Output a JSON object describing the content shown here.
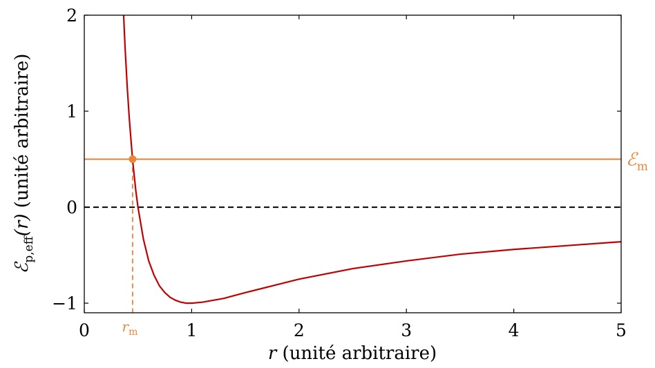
{
  "chart_data": {
    "type": "line",
    "xlabel_var": "r",
    "xlabel_rest": " (unité arbitraire)",
    "ylabel_sym": "ℰ",
    "ylabel_sub": "p,eff",
    "ylabel_arg": "(r)",
    "ylabel_rest": " (unité arbitraire)",
    "xlim": [
      0,
      5
    ],
    "ylim": [
      -1.1,
      2
    ],
    "x_ticks": [
      0,
      1,
      2,
      3,
      4,
      5
    ],
    "y_ticks": [
      -1,
      0,
      1,
      2
    ],
    "x_tick_labels": [
      "0",
      "1",
      "2",
      "3",
      "4",
      "5"
    ],
    "y_tick_labels": [
      "−1",
      "0",
      "1",
      "2"
    ],
    "grid": false,
    "colors": {
      "curve": "#c00000",
      "energy": "#e8873a",
      "zero_line": "#000000"
    },
    "curve_samples": {
      "x": [
        0.36,
        0.38,
        0.4,
        0.42,
        0.45,
        0.48,
        0.5,
        0.55,
        0.6,
        0.65,
        0.7,
        0.75,
        0.8,
        0.85,
        0.9,
        0.95,
        1.0,
        1.1,
        1.2,
        1.3,
        1.4,
        1.5,
        1.75,
        2.0,
        2.5,
        3.0,
        3.5,
        4.0,
        4.5,
        5.0
      ],
      "y": [
        2.16,
        1.66,
        1.25,
        0.91,
        0.49,
        0.17,
        0.0,
        -0.33,
        -0.56,
        -0.71,
        -0.82,
        -0.89,
        -0.94,
        -0.97,
        -0.99,
        -1.0,
        -1.0,
        -0.99,
        -0.97,
        -0.95,
        -0.92,
        -0.89,
        -0.82,
        -0.75,
        -0.64,
        -0.56,
        -0.49,
        -0.44,
        -0.4,
        -0.36
      ]
    },
    "zero_line_y": 0,
    "energy_level": 0.5,
    "r_m": 0.45,
    "energy_label_sym": "ℰ",
    "energy_label_sub": "m",
    "r_m_label_var": "r",
    "r_m_label_sub": "m"
  }
}
